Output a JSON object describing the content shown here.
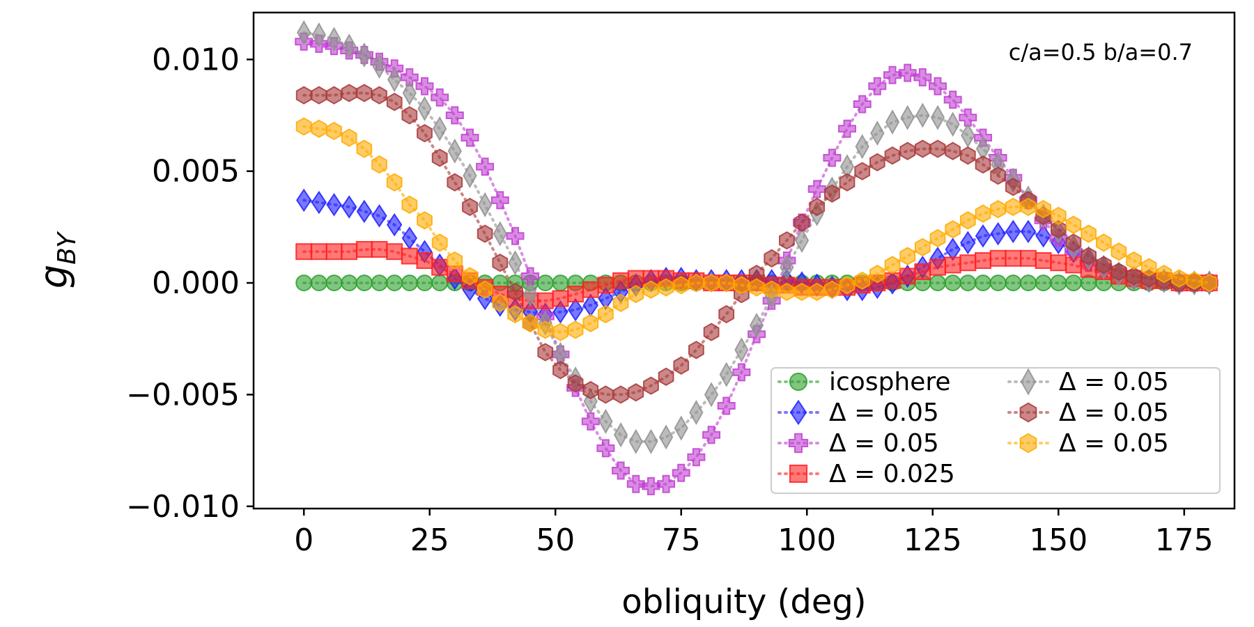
{
  "chart_data": {
    "type": "line",
    "xlabel": "obliquity (deg)",
    "ylabel_main": "g",
    "ylabel_sub": "BY",
    "annotation": "c/a=0.5 b/a=0.7",
    "xlim": [
      -10,
      185
    ],
    "ylim": [
      -0.0101,
      0.0121
    ],
    "xticks": [
      0,
      25,
      50,
      75,
      100,
      125,
      150,
      175
    ],
    "xtick_labels": [
      "0",
      "25",
      "50",
      "75",
      "100",
      "125",
      "150",
      "175"
    ],
    "yticks": [
      -0.01,
      -0.005,
      0,
      0.005,
      0.01
    ],
    "ytick_labels": [
      "−0.010",
      "−0.005",
      "0.000",
      "0.005",
      "0.010"
    ],
    "legend_position": "lower-right",
    "x": [
      0,
      3,
      6,
      9,
      12,
      15,
      18,
      21,
      24,
      27,
      30,
      33,
      36,
      39,
      42,
      45,
      48,
      51,
      54,
      57,
      60,
      63,
      66,
      69,
      72,
      75,
      78,
      81,
      84,
      87,
      90,
      93,
      96,
      99,
      102,
      105,
      108,
      111,
      114,
      117,
      120,
      123,
      126,
      129,
      132,
      135,
      138,
      141,
      144,
      147,
      150,
      153,
      156,
      159,
      162,
      165,
      168,
      171,
      174,
      177,
      180
    ],
    "series": [
      {
        "name": "icosphere",
        "marker": "circle",
        "color": "#2ca02c",
        "values": [
          0,
          0,
          0,
          0,
          0,
          0,
          0,
          0,
          0,
          0,
          0,
          0,
          0,
          0,
          0,
          0,
          0,
          0,
          0,
          0,
          0,
          0,
          0,
          0,
          0,
          0,
          0,
          0,
          0,
          0,
          0,
          0,
          0,
          0,
          0,
          0,
          0,
          0,
          0,
          0,
          0,
          0,
          0,
          0,
          0,
          0,
          0,
          0,
          0,
          0,
          0,
          0,
          0,
          0,
          0,
          0,
          0,
          0,
          0,
          0,
          0
        ]
      },
      {
        "name": "Δ = 0.05",
        "marker": "diamond",
        "color": "#1f1fff",
        "values": [
          0.0037,
          0.0036,
          0.0035,
          0.0034,
          0.0032,
          0.003,
          0.0026,
          0.002,
          0.0014,
          0.0008,
          0.0002,
          -0.0003,
          -0.0007,
          -0.001,
          -0.0012,
          -0.0013,
          -0.0014,
          -0.0013,
          -0.0012,
          -0.001,
          -0.0007,
          -0.0004,
          -0.0001,
          0.0001,
          0.0002,
          0.0002,
          0.0001,
          0.0001,
          0.0001,
          0.0001,
          0.0001,
          0.0001,
          0.0001,
          0.0,
          -0.0001,
          -0.0002,
          -0.0003,
          -0.0003,
          -0.0002,
          0.0,
          0.0003,
          0.0007,
          0.0011,
          0.0015,
          0.0018,
          0.0021,
          0.0022,
          0.0023,
          0.0023,
          0.0021,
          0.0018,
          0.0014,
          0.001,
          0.0007,
          0.0004,
          0.0002,
          0.0001,
          0.0001,
          0.0,
          0.0,
          0.0
        ]
      },
      {
        "name": "Δ = 0.05",
        "marker": "plus",
        "color": "#c040d0",
        "values": [
          0.0108,
          0.0107,
          0.0106,
          0.0104,
          0.0102,
          0.0099,
          0.0096,
          0.0092,
          0.0088,
          0.0083,
          0.0075,
          0.0065,
          0.0052,
          0.0037,
          0.0021,
          0.0003,
          -0.0015,
          -0.0032,
          -0.0047,
          -0.0062,
          -0.0074,
          -0.0084,
          -0.009,
          -0.0091,
          -0.009,
          -0.0085,
          -0.0078,
          -0.0068,
          -0.0055,
          -0.004,
          -0.0023,
          -0.0008,
          0.001,
          0.0027,
          0.0042,
          0.0056,
          0.0069,
          0.008,
          0.0088,
          0.0093,
          0.0094,
          0.0092,
          0.0088,
          0.0082,
          0.0074,
          0.0065,
          0.0056,
          0.0047,
          0.0037,
          0.0028,
          0.002,
          0.0014,
          0.0009,
          0.0006,
          0.0004,
          0.0002,
          0.0001,
          0.0001,
          0.0,
          0.0,
          0.0
        ]
      },
      {
        "name": "Δ = 0.025",
        "marker": "square",
        "color": "#ff2020",
        "values": [
          0.0014,
          0.0014,
          0.0014,
          0.0014,
          0.0015,
          0.0015,
          0.0014,
          0.0012,
          0.001,
          0.0007,
          0.0004,
          0.0001,
          -0.0002,
          -0.0005,
          -0.0007,
          -0.0008,
          -0.0008,
          -0.0007,
          -0.0005,
          -0.0003,
          -0.0001,
          0.0001,
          0.0002,
          0.0002,
          0.0002,
          0.0001,
          0.0001,
          0.0,
          0.0,
          0.0,
          0.0,
          -0.0001,
          -0.0001,
          -0.0002,
          -0.0002,
          -0.0002,
          -0.0002,
          -0.0001,
          0.0,
          0.0001,
          0.0003,
          0.0005,
          0.0007,
          0.0008,
          0.0009,
          0.001,
          0.0011,
          0.0011,
          0.0011,
          0.001,
          0.0009,
          0.0008,
          0.0006,
          0.0005,
          0.0003,
          0.0002,
          0.0001,
          0.0001,
          0.0,
          0.0,
          0.0
        ]
      },
      {
        "name": "Δ = 0.05",
        "marker": "thin-diamond",
        "color": "#909090",
        "values": [
          0.0112,
          0.0111,
          0.0109,
          0.0106,
          0.0102,
          0.0097,
          0.0091,
          0.0085,
          0.0078,
          0.0069,
          0.0059,
          0.0048,
          0.0035,
          0.0022,
          0.0009,
          -0.0005,
          -0.0018,
          -0.0032,
          -0.0043,
          -0.0053,
          -0.0062,
          -0.0068,
          -0.0071,
          -0.0071,
          -0.0069,
          -0.0065,
          -0.0058,
          -0.005,
          -0.0041,
          -0.003,
          -0.0019,
          -0.0006,
          0.0007,
          0.0019,
          0.0031,
          0.0042,
          0.0052,
          0.0061,
          0.0067,
          0.0072,
          0.0074,
          0.0075,
          0.0074,
          0.0071,
          0.0066,
          0.006,
          0.0053,
          0.0046,
          0.0038,
          0.003,
          0.0023,
          0.0016,
          0.0011,
          0.0007,
          0.0004,
          0.0002,
          0.0001,
          0.0001,
          0.0,
          0.0,
          0.0
        ]
      },
      {
        "name": "Δ = 0.05",
        "marker": "hexagon",
        "color": "#a83838",
        "values": [
          0.0084,
          0.0084,
          0.0084,
          0.0085,
          0.0085,
          0.0084,
          0.0081,
          0.0075,
          0.0067,
          0.0056,
          0.0045,
          0.0034,
          0.0022,
          0.0009,
          -0.0004,
          -0.0018,
          -0.0031,
          -0.0039,
          -0.0045,
          -0.0048,
          -0.005,
          -0.005,
          -0.0049,
          -0.0046,
          -0.0042,
          -0.0037,
          -0.003,
          -0.0022,
          -0.0014,
          -0.0005,
          0.0004,
          0.0011,
          0.0019,
          0.0027,
          0.0034,
          0.004,
          0.0045,
          0.005,
          0.0054,
          0.0057,
          0.0059,
          0.006,
          0.006,
          0.0059,
          0.0057,
          0.0053,
          0.0048,
          0.0043,
          0.0037,
          0.003,
          0.0024,
          0.0018,
          0.0012,
          0.0008,
          0.0005,
          0.0003,
          0.0002,
          0.0001,
          0.0,
          0.0,
          0.0
        ]
      },
      {
        "name": "Δ = 0.05",
        "marker": "hexagon",
        "color": "#ffaa00",
        "values": [
          0.007,
          0.0069,
          0.0068,
          0.0065,
          0.006,
          0.0053,
          0.0045,
          0.0035,
          0.0028,
          0.0018,
          0.001,
          0.0003,
          -0.0003,
          -0.0009,
          -0.0014,
          -0.0018,
          -0.0021,
          -0.0022,
          -0.0021,
          -0.0018,
          -0.0014,
          -0.0009,
          -0.0005,
          -0.0003,
          -0.0002,
          -0.0001,
          0.0,
          0.0,
          0.0,
          -0.0001,
          -0.0002,
          -0.0003,
          -0.0004,
          -0.0004,
          -0.0004,
          -0.0003,
          -0.0001,
          0.0001,
          0.0004,
          0.0008,
          0.0012,
          0.0016,
          0.002,
          0.0024,
          0.0028,
          0.0031,
          0.0033,
          0.0034,
          0.0034,
          0.0033,
          0.003,
          0.0026,
          0.0022,
          0.0018,
          0.0014,
          0.001,
          0.0007,
          0.0004,
          0.0002,
          0.0001,
          0.0
        ]
      }
    ],
    "legend_columns": [
      [
        0,
        1,
        2,
        3
      ],
      [
        4,
        5,
        6
      ]
    ]
  }
}
